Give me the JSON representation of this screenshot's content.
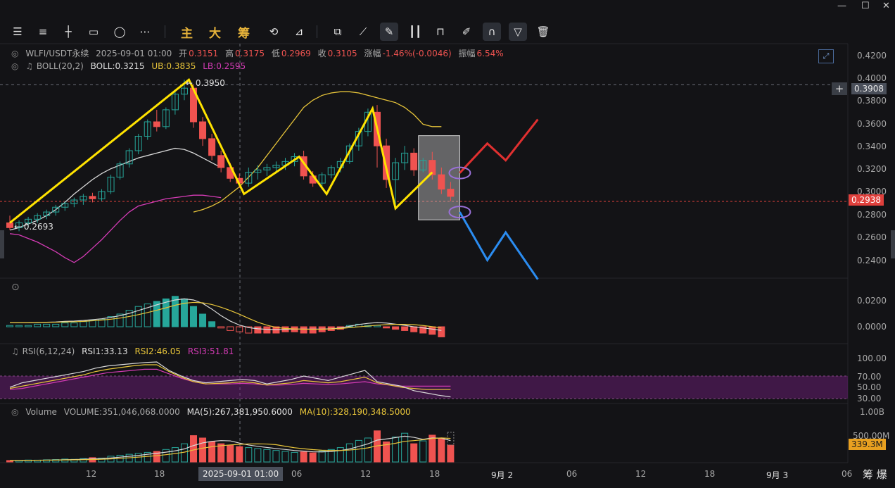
{
  "window": {
    "minimize": "—",
    "maximize": "☐",
    "close": "✕"
  },
  "toolbar": {
    "tools_left": [
      "menu-icon",
      "lines-icon",
      "crosshair-icon",
      "rectangle-icon",
      "ellipse-icon",
      "more-icon"
    ],
    "text_buttons": [
      "主",
      "大",
      "筹"
    ],
    "tools_right": [
      "refresh-draw-icon",
      "measure-icon",
      "copy-icon",
      "ruler-icon",
      "pen-icon",
      "candles-icon",
      "lock-icon",
      "edit-icon",
      "magnet-icon",
      "filter-icon",
      "trash-icon"
    ]
  },
  "legend": {
    "symbol": "WLFI/USDT永续",
    "datetime": "2025-09-01 01:00",
    "open_label": "开",
    "open": "0.3151",
    "high_label": "高",
    "high": "0.3175",
    "low_label": "低",
    "low": "0.2969",
    "close_label": "收",
    "close": "0.3105",
    "change_label": "涨幅",
    "change": "-1.46%(-0.0046)",
    "amp_label": "振幅",
    "amp": "6.54%",
    "boll_name": "BOLL(20,2)",
    "boll_mid": "BOLL:0.3215",
    "boll_ub": "UB:0.3835",
    "boll_lb": "LB:0.2595"
  },
  "rsi_legend": {
    "name": "RSI(6,12,24)",
    "rsi1": "RSI1:33.13",
    "rsi2": "RSI2:46.05",
    "rsi3": "RSI3:51.81"
  },
  "vol_legend": {
    "name": "Volume",
    "volume": "VOLUME:351,046,068.0000",
    "ma5": "MA(5):267,381,950.6000",
    "ma10": "MA(10):328,190,348.5000"
  },
  "price_axis": {
    "ticks": [
      "0.4200",
      "0.4000",
      "0.3800",
      "0.3600",
      "0.3400",
      "0.3200",
      "0.3000",
      "0.2800",
      "0.2600",
      "0.2400"
    ],
    "crosshair_price": "0.3908",
    "last_price": "0.2938",
    "high_mark": "← 0.3950",
    "low_mark": "← 0.2693"
  },
  "macd_axis": {
    "ticks": [
      "0.0200",
      "0.0000"
    ]
  },
  "rsi_axis": {
    "ticks": [
      "100.00",
      "70.00",
      "50.00",
      "30.00"
    ]
  },
  "vol_axis": {
    "ticks": [
      "1.00B",
      "500.00M"
    ],
    "current": "339.3M"
  },
  "time_axis": {
    "labels": [
      "12",
      "18",
      "06",
      "12",
      "18",
      "9月 2",
      "06",
      "12",
      "18",
      "9月 3",
      "06"
    ],
    "crosshair_time": "2025-09-01 01:00",
    "corner": "筹 爆"
  },
  "colors": {
    "up": "#26a69a",
    "down": "#ef5350",
    "ub": "#e8c53a",
    "mid": "#d8d8d8",
    "lb": "#d43bb5",
    "zigzag": "#ffe300",
    "forecast_up": "#e03030",
    "forecast_down": "#2b8cf0"
  },
  "chart_data": {
    "type": "candlestick",
    "price_range": [
      0.23,
      0.425
    ],
    "candles": [
      [
        0.276,
        0.282,
        0.27,
        0.272
      ],
      [
        0.272,
        0.278,
        0.269,
        0.276
      ],
      [
        0.276,
        0.281,
        0.273,
        0.279
      ],
      [
        0.279,
        0.284,
        0.276,
        0.282
      ],
      [
        0.282,
        0.287,
        0.279,
        0.285
      ],
      [
        0.285,
        0.291,
        0.282,
        0.289
      ],
      [
        0.289,
        0.294,
        0.286,
        0.292
      ],
      [
        0.292,
        0.297,
        0.289,
        0.295
      ],
      [
        0.295,
        0.3,
        0.291,
        0.298
      ],
      [
        0.298,
        0.301,
        0.293,
        0.296
      ],
      [
        0.296,
        0.304,
        0.294,
        0.302
      ],
      [
        0.302,
        0.316,
        0.3,
        0.314
      ],
      [
        0.314,
        0.327,
        0.312,
        0.325
      ],
      [
        0.325,
        0.338,
        0.322,
        0.336
      ],
      [
        0.336,
        0.35,
        0.333,
        0.348
      ],
      [
        0.348,
        0.362,
        0.345,
        0.36
      ],
      [
        0.36,
        0.37,
        0.352,
        0.356
      ],
      [
        0.356,
        0.372,
        0.354,
        0.37
      ],
      [
        0.37,
        0.386,
        0.366,
        0.383
      ],
      [
        0.383,
        0.395,
        0.378,
        0.388
      ],
      [
        0.388,
        0.391,
        0.355,
        0.36
      ],
      [
        0.36,
        0.364,
        0.34,
        0.346
      ],
      [
        0.346,
        0.35,
        0.328,
        0.332
      ],
      [
        0.332,
        0.336,
        0.318,
        0.322
      ],
      [
        0.322,
        0.326,
        0.31,
        0.313
      ],
      [
        0.313,
        0.317,
        0.305,
        0.309
      ],
      [
        0.309,
        0.322,
        0.306,
        0.318
      ],
      [
        0.318,
        0.324,
        0.312,
        0.32
      ],
      [
        0.32,
        0.325,
        0.315,
        0.322
      ],
      [
        0.322,
        0.327,
        0.317,
        0.324
      ],
      [
        0.324,
        0.33,
        0.32,
        0.327
      ],
      [
        0.327,
        0.334,
        0.323,
        0.331
      ],
      [
        0.331,
        0.336,
        0.312,
        0.315
      ],
      [
        0.315,
        0.319,
        0.306,
        0.309
      ],
      [
        0.309,
        0.318,
        0.306,
        0.316
      ],
      [
        0.316,
        0.324,
        0.313,
        0.322
      ],
      [
        0.322,
        0.33,
        0.318,
        0.327
      ],
      [
        0.327,
        0.342,
        0.325,
        0.34
      ],
      [
        0.34,
        0.355,
        0.336,
        0.352
      ],
      [
        0.352,
        0.371,
        0.348,
        0.368
      ],
      [
        0.368,
        0.374,
        0.322,
        0.34
      ],
      [
        0.34,
        0.346,
        0.305,
        0.312
      ],
      [
        0.312,
        0.33,
        0.288,
        0.326
      ],
      [
        0.326,
        0.34,
        0.32,
        0.334
      ],
      [
        0.334,
        0.338,
        0.315,
        0.32
      ],
      [
        0.32,
        0.33,
        0.318,
        0.328
      ],
      [
        0.328,
        0.335,
        0.312,
        0.316
      ],
      [
        0.316,
        0.322,
        0.3,
        0.304
      ],
      [
        0.304,
        0.31,
        0.294,
        0.298
      ]
    ],
    "boll": {
      "ub": [
        0.285,
        0.287,
        0.29,
        0.294,
        0.3,
        0.306,
        0.314,
        0.322,
        0.332,
        0.342,
        0.352,
        0.362,
        0.372,
        0.378,
        0.382,
        0.384,
        0.385,
        0.385,
        0.384,
        0.382,
        0.38,
        0.378,
        0.376,
        0.372,
        0.366,
        0.358,
        0.356,
        0.356
      ],
      "mid": [
        0.27,
        0.272,
        0.275,
        0.278,
        0.282,
        0.287,
        0.293,
        0.3,
        0.306,
        0.312,
        0.317,
        0.321,
        0.324,
        0.327,
        0.33,
        0.332,
        0.334,
        0.336,
        0.338,
        0.337,
        0.334,
        0.33,
        0.326,
        0.322
      ],
      "lb": [
        0.267,
        0.266,
        0.263,
        0.26,
        0.256,
        0.252,
        0.247,
        0.243,
        0.248,
        0.255,
        0.262,
        0.27,
        0.278,
        0.285,
        0.29,
        0.292,
        0.294,
        0.296,
        0.297,
        0.298,
        0.299,
        0.299,
        0.298,
        0.297
      ]
    },
    "macd_hist": [
      0.001,
      0.001,
      0.001,
      0.002,
      0.002,
      0.002,
      0.003,
      0.003,
      0.004,
      0.005,
      0.006,
      0.008,
      0.01,
      0.013,
      0.016,
      0.018,
      0.02,
      0.022,
      0.024,
      0.022,
      0.016,
      0.01,
      0.004,
      -0.001,
      -0.003,
      -0.004,
      -0.005,
      -0.005,
      -0.005,
      -0.005,
      -0.004,
      -0.004,
      -0.005,
      -0.005,
      -0.004,
      -0.003,
      -0.002,
      0.001,
      0.002,
      0.001,
      0.001,
      -0.001,
      -0.002,
      -0.003,
      -0.004,
      -0.005,
      -0.006,
      -0.008
    ],
    "rsi": {
      "rsi1": [
        50,
        58,
        62,
        66,
        70,
        74,
        78,
        84,
        88,
        90,
        92,
        94,
        95,
        80,
        70,
        62,
        58,
        60,
        62,
        64,
        62,
        56,
        60,
        64,
        70,
        66,
        62,
        68,
        74,
        80,
        60,
        56,
        52,
        44,
        40,
        36,
        33
      ],
      "rsi2": [
        48,
        52,
        56,
        60,
        64,
        68,
        72,
        78,
        82,
        85,
        88,
        90,
        90,
        78,
        68,
        60,
        56,
        57,
        58,
        60,
        58,
        54,
        56,
        58,
        62,
        60,
        58,
        60,
        64,
        68,
        58,
        54,
        50,
        48,
        46,
        46,
        46
      ],
      "rsi3": [
        46,
        48,
        52,
        56,
        60,
        64,
        68,
        72,
        76,
        78,
        80,
        82,
        82,
        74,
        66,
        60,
        56,
        56,
        56,
        57,
        56,
        54,
        54,
        55,
        57,
        56,
        55,
        56,
        58,
        60,
        56,
        54,
        52,
        52,
        52,
        52,
        52
      ]
    },
    "volume": [
      30,
      35,
      40,
      38,
      45,
      50,
      60,
      55,
      70,
      90,
      80,
      120,
      140,
      160,
      180,
      200,
      220,
      260,
      300,
      380,
      550,
      500,
      420,
      380,
      350,
      320,
      300,
      280,
      260,
      240,
      220,
      200,
      210,
      190,
      230,
      260,
      300,
      380,
      450,
      500,
      650,
      420,
      520,
      600,
      380,
      440,
      560,
      500,
      351
    ],
    "volume_range": [
      0,
      1000
    ],
    "zigzag": [
      [
        0.276,
        0
      ],
      [
        0.395,
        19.5
      ],
      [
        0.3,
        25.5
      ],
      [
        0.331,
        31.5
      ],
      [
        0.3,
        34.5
      ],
      [
        0.371,
        39.5
      ],
      [
        0.288,
        42
      ],
      [
        0.318,
        46
      ]
    ],
    "forecast_up": [
      [
        0.3175,
        49
      ],
      [
        0.342,
        52
      ],
      [
        0.328,
        54
      ],
      [
        0.362,
        57.5
      ]
    ],
    "forecast_down": [
      [
        0.285,
        49
      ],
      [
        0.245,
        52
      ],
      [
        0.268,
        54
      ],
      [
        0.229,
        57.5
      ]
    ],
    "annotation_box": {
      "x0": 44.5,
      "x1": 49,
      "y0": 0.2785,
      "y1": 0.3485
    }
  }
}
